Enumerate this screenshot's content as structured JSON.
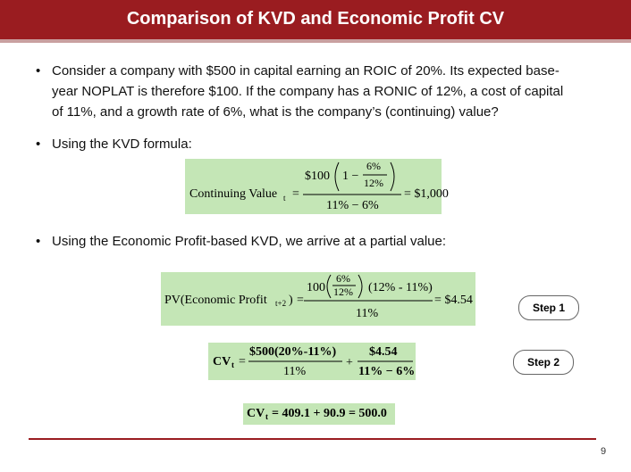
{
  "header": {
    "title": "Comparison of KVD and Economic Profit CV"
  },
  "bullets": [
    {
      "lines": [
        "Consider a company with $500 in capital earning an ROIC of 20%.  Its expected base-",
        "year NOPLAT is therefore $100.  If the company has a RONIC of 12%, a cost of capital",
        "of 11%, and a growth rate of 6%, what is the company’s (continuing) value?"
      ]
    },
    {
      "lines": [
        "Using the KVD formula:"
      ]
    },
    {
      "lines": [
        "Using the Economic Profit-based KVD, we arrive at a partial value:"
      ]
    }
  ],
  "formulas": {
    "kvd": {
      "lhs": "Continuing Value",
      "sub": "t",
      "eq": "=",
      "factor": "$100",
      "one": "1 −",
      "g": "6%",
      "ronic": "12%",
      "den": "11% − 6%",
      "result": "= $1,000"
    },
    "pv_ep": {
      "lhs": "PV(Economic Profit",
      "sub": "t+2",
      "close": ")",
      "eq": "=",
      "factor": "100",
      "g": "6%",
      "ronic": "12%",
      "spread": "(12% - 11%)",
      "den": "11%",
      "result": "= $4.54"
    },
    "cv": {
      "lhs": "CV",
      "sub": "t",
      "eq": "=",
      "num1": "$500(20%-11%)",
      "den1": "11%",
      "plus": "+",
      "num2": "$4.54",
      "den2": "11% − 6%"
    },
    "cv_result": {
      "lhs": "CV",
      "sub": "t",
      "rest": "= 409.1 + 90.9 = 500.0"
    }
  },
  "steps": [
    "Step 1",
    "Step 2"
  ],
  "footer": {
    "page": "9"
  }
}
